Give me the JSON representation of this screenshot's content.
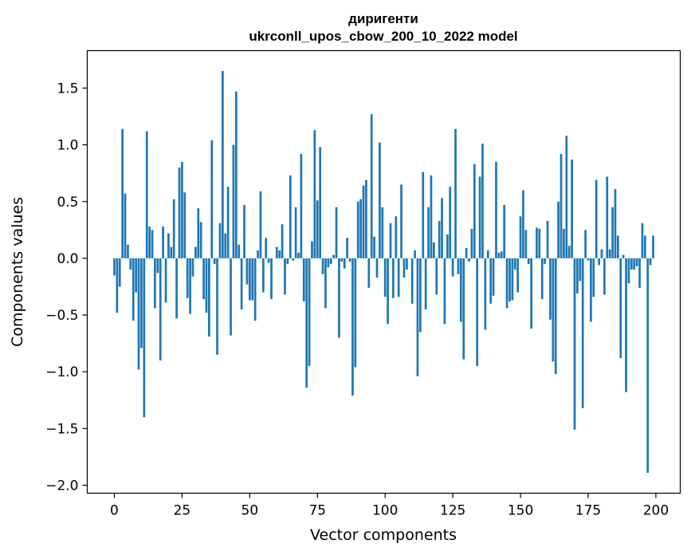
{
  "chart_data": {
    "type": "bar",
    "title": "диригенти",
    "subtitle": "ukrconll_upos_cbow_200_10_2022 model",
    "xlabel": "Vector components",
    "ylabel": "Components values",
    "xlim": [
      -10,
      209
    ],
    "ylim": [
      -2.07,
      1.83
    ],
    "xticks": [
      0,
      25,
      50,
      75,
      100,
      125,
      150,
      175,
      200
    ],
    "yticks": [
      -2.0,
      -1.5,
      -1.0,
      -0.5,
      0.0,
      0.5,
      1.0,
      1.5
    ],
    "ytick_labels": [
      "−2.0",
      "−1.5",
      "−1.0",
      "−0.5",
      "0.0",
      "0.5",
      "1.0",
      "1.5"
    ],
    "bar_color": "#1f77b4",
    "grid": false,
    "values": [
      -0.15,
      -0.48,
      -0.25,
      1.14,
      0.57,
      0.12,
      -0.1,
      -0.55,
      -0.3,
      -0.98,
      -0.79,
      -1.4,
      1.12,
      0.28,
      0.25,
      -0.44,
      -0.13,
      -0.9,
      0.28,
      -0.39,
      0.22,
      0.1,
      0.52,
      -0.53,
      0.8,
      0.85,
      0.58,
      -0.35,
      -0.49,
      -0.16,
      0.1,
      0.44,
      0.32,
      -0.36,
      -0.48,
      -0.69,
      1.04,
      -0.05,
      -0.85,
      0.31,
      1.65,
      0.22,
      0.63,
      -0.68,
      1.0,
      1.47,
      0.12,
      -0.45,
      0.47,
      -0.23,
      -0.37,
      -0.37,
      -0.55,
      0.07,
      0.59,
      -0.3,
      0.18,
      -0.04,
      -0.36,
      0.0,
      0.1,
      0.07,
      0.3,
      -0.32,
      -0.05,
      0.73,
      -0.02,
      0.45,
      0.05,
      0.92,
      -0.38,
      -1.14,
      -0.95,
      0.15,
      1.13,
      0.51,
      0.98,
      -0.14,
      -0.44,
      -0.08,
      -0.05,
      0.03,
      0.45,
      -0.7,
      -0.03,
      -0.09,
      0.18,
      -0.03,
      -1.21,
      -0.96,
      0.5,
      0.52,
      0.64,
      0.69,
      -0.26,
      1.27,
      0.19,
      -0.17,
      1.02,
      0.45,
      -0.34,
      -0.58,
      0.31,
      -0.35,
      0.37,
      -0.34,
      0.65,
      -0.17,
      -0.1,
      0.0,
      -0.4,
      0.07,
      -1.04,
      -0.65,
      0.76,
      -0.45,
      0.45,
      0.73,
      0.14,
      -0.32,
      0.33,
      0.53,
      -0.58,
      0.21,
      0.63,
      -0.16,
      1.14,
      -0.14,
      -0.56,
      -0.89,
      0.09,
      -0.03,
      0.26,
      0.83,
      -0.95,
      0.72,
      1.01,
      -0.63,
      0.07,
      -0.4,
      -0.33,
      0.85,
      0.05,
      0.06,
      0.47,
      -0.44,
      -0.38,
      -0.37,
      -0.1,
      -0.3,
      0.37,
      0.6,
      0.25,
      -0.05,
      -0.62,
      0.0,
      0.27,
      0.26,
      -0.36,
      -0.05,
      0.33,
      -0.54,
      -0.91,
      -1.02,
      0.5,
      0.92,
      0.26,
      1.08,
      0.11,
      0.87,
      -1.51,
      -0.31,
      -0.2,
      -1.32,
      0.25,
      -0.02,
      -0.56,
      -0.34,
      0.69,
      -0.06,
      0.08,
      -0.32,
      0.72,
      0.08,
      0.45,
      0.61,
      0.2,
      -0.88,
      0.03,
      -1.18,
      -0.22,
      -0.1,
      -0.1,
      -0.07,
      -0.26,
      0.31,
      0.2,
      -1.89,
      -0.06,
      0.2
    ]
  }
}
